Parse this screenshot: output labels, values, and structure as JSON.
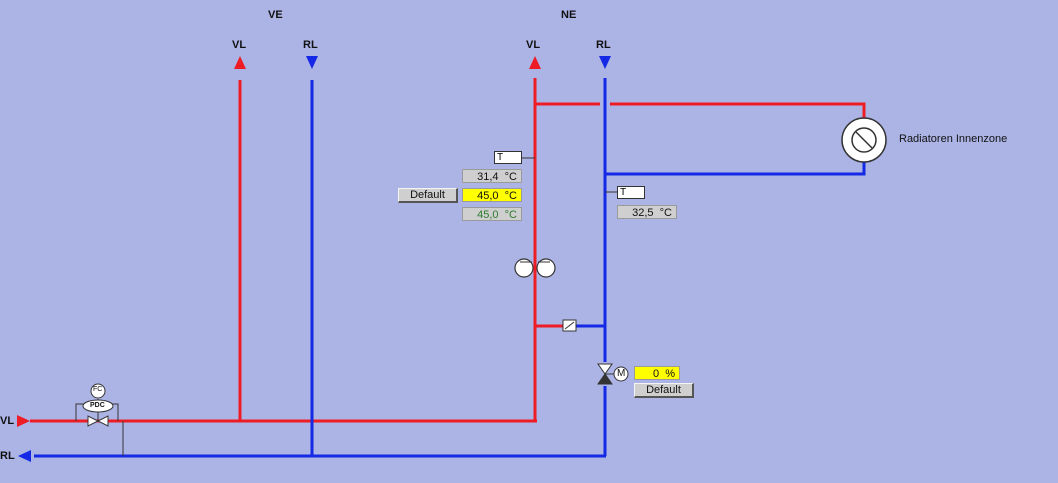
{
  "header": {
    "ve_label": "VE",
    "ne_label": "NE"
  },
  "pipes": {
    "ve_vl": "VL",
    "ve_rl": "RL",
    "ne_vl": "VL",
    "ne_rl": "RL",
    "left_vl": "VL",
    "left_rl": "RL"
  },
  "colors": {
    "supply": "#ee1c24",
    "return": "#1428e6",
    "background": "#acb4e6"
  },
  "consumer": {
    "label": "Radiatoren Innenzone",
    "icon": "radiator-icon"
  },
  "ne_supply_sensor": {
    "tag": "T",
    "actual": "31,4",
    "setpoint": "45,0",
    "computed": "45,0",
    "unit": "°C",
    "default_label": "Default"
  },
  "ne_return_sensor": {
    "tag": "T",
    "actual": "32,5",
    "unit": "°C"
  },
  "mixing_valve": {
    "motor": "M",
    "position": "0",
    "unit": "%",
    "default_label": "Default"
  },
  "pdc": {
    "top": "FC",
    "label": "PDC"
  }
}
